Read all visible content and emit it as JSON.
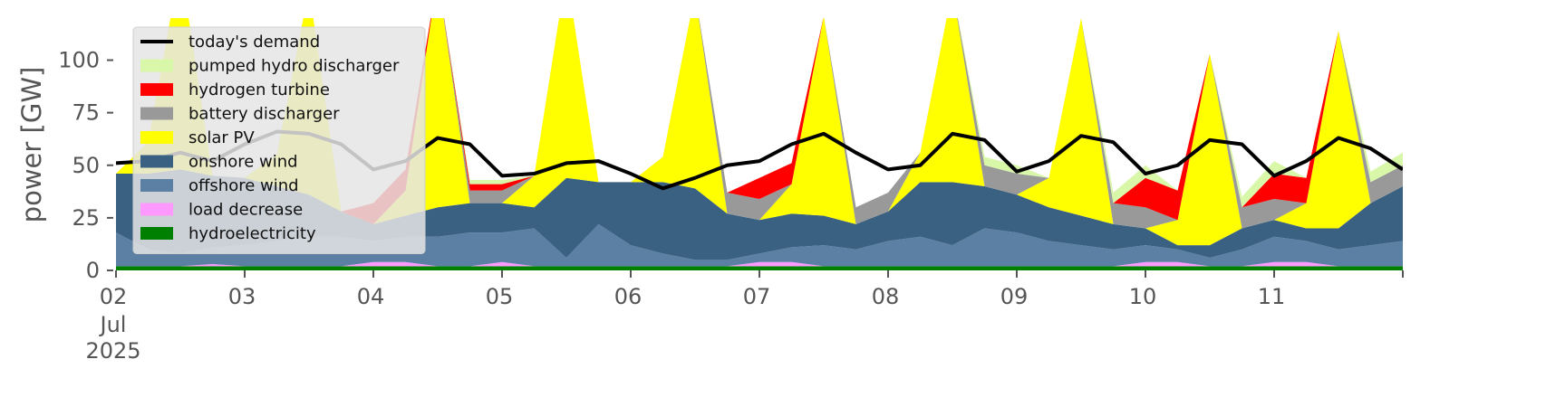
{
  "chart_data": {
    "type": "area",
    "title": "",
    "xlabel": "",
    "ylabel": "power [GW]",
    "ylim": [
      0,
      120
    ],
    "yticks": [
      0,
      25,
      50,
      75,
      100
    ],
    "ytick_labels": [
      "0",
      "25",
      "50",
      "75",
      "100"
    ],
    "x_range": [
      "2025-07-02T00:00",
      "2025-07-12T00:00"
    ],
    "x_ticks": [
      {
        "day": 0,
        "label": "02",
        "label2": "Jul",
        "label3": "2025"
      },
      {
        "day": 1,
        "label": "03"
      },
      {
        "day": 2,
        "label": "04"
      },
      {
        "day": 3,
        "label": "05"
      },
      {
        "day": 4,
        "label": "06"
      },
      {
        "day": 5,
        "label": "07"
      },
      {
        "day": 6,
        "label": "08"
      },
      {
        "day": 7,
        "label": "09"
      },
      {
        "day": 8,
        "label": "10"
      },
      {
        "day": 9,
        "label": "11"
      }
    ],
    "grid": false,
    "legend_position": "upper-left",
    "legend": [
      {
        "label": "today's demand",
        "color": "#000000",
        "kind": "line"
      },
      {
        "label": "pumped hydro discharger",
        "color": "#d9f7a8",
        "kind": "patch"
      },
      {
        "label": "hydrogen turbine",
        "color": "#ff0000",
        "kind": "patch"
      },
      {
        "label": "battery discharger",
        "color": "#999999",
        "kind": "patch"
      },
      {
        "label": "solar PV",
        "color": "#ffff00",
        "kind": "patch"
      },
      {
        "label": "onshore wind",
        "color": "#3a6182",
        "kind": "patch"
      },
      {
        "label": "offshore wind",
        "color": "#5b80a4",
        "kind": "patch"
      },
      {
        "label": "load decrease",
        "color": "#ff99ff",
        "kind": "patch"
      },
      {
        "label": "hydroelectricity",
        "color": "#008000",
        "kind": "patch"
      }
    ],
    "x_hours": [
      0,
      6,
      12,
      18,
      24,
      30,
      36,
      42,
      48,
      54,
      60,
      66,
      72,
      78,
      84,
      90,
      96,
      102,
      108,
      114,
      120,
      126,
      132,
      138,
      144,
      150,
      156,
      162,
      168,
      174,
      180,
      186,
      192,
      198,
      204,
      210,
      216,
      222,
      228,
      234,
      240
    ],
    "series": [
      {
        "name": "hydroelectricity",
        "color": "#008000",
        "values": [
          2,
          2,
          2,
          2,
          2,
          2,
          2,
          2,
          2,
          2,
          2,
          2,
          2,
          2,
          2,
          2,
          2,
          2,
          2,
          2,
          2,
          2,
          2,
          2,
          2,
          2,
          2,
          2,
          2,
          2,
          2,
          2,
          2,
          2,
          2,
          2,
          2,
          2,
          2,
          2,
          2
        ]
      },
      {
        "name": "load decrease",
        "color": "#ff99ff",
        "values": [
          0,
          0,
          0,
          1,
          0,
          0,
          0,
          0,
          2,
          2,
          0,
          0,
          2,
          0,
          0,
          0,
          0,
          0,
          0,
          0,
          2,
          2,
          0,
          0,
          0,
          0,
          0,
          0,
          0,
          0,
          0,
          0,
          2,
          2,
          0,
          0,
          2,
          2,
          0,
          0,
          0
        ]
      },
      {
        "name": "offshore wind",
        "color": "#5b80a4",
        "values": [
          16,
          8,
          6,
          8,
          10,
          12,
          14,
          14,
          10,
          12,
          14,
          16,
          14,
          18,
          4,
          20,
          10,
          6,
          3,
          3,
          4,
          7,
          10,
          8,
          12,
          14,
          10,
          18,
          16,
          12,
          10,
          8,
          8,
          6,
          4,
          8,
          12,
          10,
          8,
          10,
          12
        ]
      },
      {
        "name": "onshore wind",
        "color": "#3a6182",
        "values": [
          28,
          36,
          40,
          34,
          32,
          26,
          20,
          12,
          8,
          10,
          14,
          14,
          14,
          10,
          38,
          20,
          30,
          34,
          34,
          22,
          16,
          16,
          14,
          12,
          14,
          26,
          30,
          20,
          18,
          16,
          14,
          12,
          8,
          2,
          6,
          10,
          8,
          6,
          10,
          20,
          26
        ]
      },
      {
        "name": "solar PV",
        "color": "#ffff00",
        "values": [
          0,
          15,
          98,
          0,
          0,
          15,
          98,
          0,
          0,
          12,
          110,
          0,
          0,
          15,
          98,
          0,
          0,
          12,
          93,
          0,
          0,
          14,
          95,
          0,
          0,
          14,
          92,
          0,
          0,
          14,
          94,
          0,
          0,
          12,
          91,
          0,
          0,
          12,
          94,
          0,
          0
        ]
      },
      {
        "name": "battery discharger",
        "color": "#999999",
        "values": [
          0,
          0,
          0,
          0,
          0,
          0,
          0,
          0,
          0,
          0,
          0,
          6,
          6,
          0,
          0,
          0,
          0,
          0,
          0,
          10,
          10,
          0,
          0,
          8,
          9,
          0,
          0,
          10,
          10,
          0,
          0,
          10,
          10,
          0,
          0,
          10,
          10,
          0,
          0,
          10,
          10
        ]
      },
      {
        "name": "hydrogen turbine",
        "color": "#ff0000",
        "values": [
          0,
          0,
          0,
          0,
          0,
          0,
          0,
          0,
          10,
          10,
          0,
          3,
          3,
          0,
          0,
          0,
          0,
          0,
          0,
          0,
          10,
          10,
          0,
          0,
          0,
          0,
          0,
          0,
          0,
          0,
          0,
          0,
          14,
          14,
          0,
          0,
          12,
          12,
          0,
          0,
          0
        ]
      },
      {
        "name": "pumped hydro discharger",
        "color": "#d9f7a8",
        "values": [
          0,
          0,
          0,
          0,
          0,
          0,
          0,
          0,
          0,
          0,
          0,
          2,
          2,
          0,
          0,
          0,
          0,
          0,
          0,
          0,
          0,
          0,
          0,
          0,
          0,
          0,
          0,
          4,
          4,
          0,
          0,
          5,
          6,
          0,
          0,
          5,
          6,
          0,
          0,
          5,
          6
        ]
      }
    ],
    "demand": {
      "name": "today's demand",
      "color": "#000000",
      "values": [
        51,
        52,
        56,
        52,
        60,
        66,
        65,
        60,
        48,
        52,
        63,
        60,
        45,
        46,
        51,
        52,
        46,
        39,
        44,
        50,
        52,
        60,
        65,
        56,
        48,
        50,
        65,
        62,
        47,
        52,
        64,
        61,
        46,
        50,
        62,
        60,
        45,
        52,
        63,
        58,
        48
      ]
    }
  }
}
